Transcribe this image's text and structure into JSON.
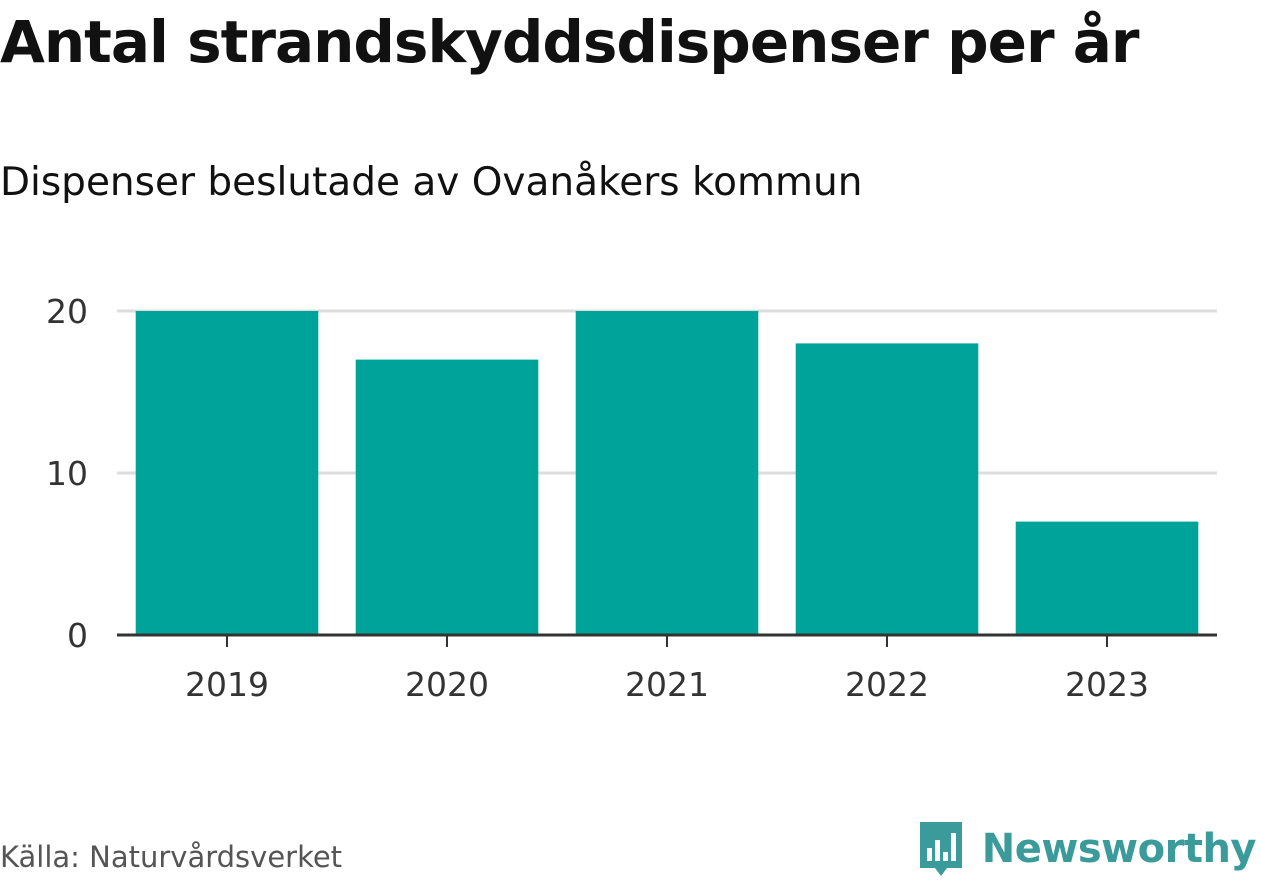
{
  "title": "Antal strandskyddsdispenser per år",
  "subtitle": "Dispenser beslutade av Ovanåkers kommun",
  "source": "Källa: Naturvårdsverket",
  "brand": "Newsworthy",
  "colors": {
    "bar": "#00a39a",
    "grid": "#dddddd",
    "axis": "#333333",
    "brand": "#3b9b9b"
  },
  "chart_data": {
    "type": "bar",
    "categories": [
      "2019",
      "2020",
      "2021",
      "2022",
      "2023"
    ],
    "values": [
      20,
      17,
      20,
      18,
      7
    ],
    "yticks": [
      0,
      10,
      20
    ],
    "ylim": [
      0,
      20
    ],
    "xlabel": "",
    "ylabel": "",
    "grid": true,
    "legend": "none"
  }
}
